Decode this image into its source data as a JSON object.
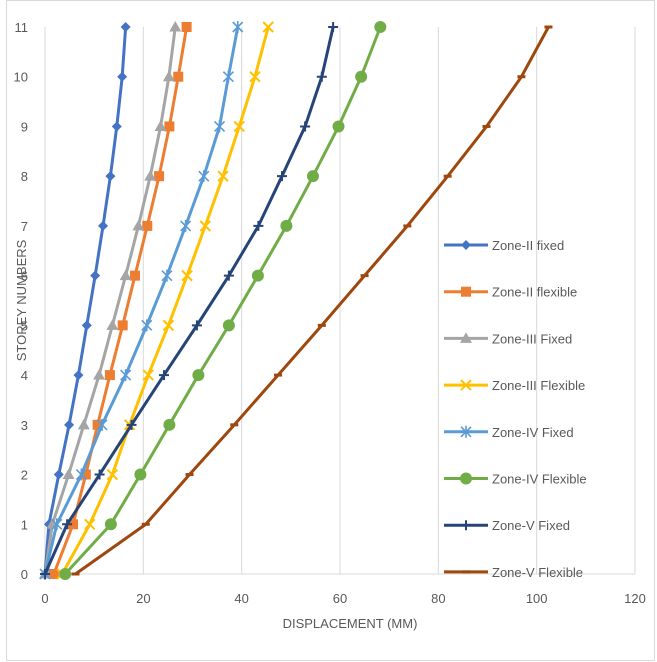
{
  "chart_data": {
    "type": "line",
    "xlabel": "DISPLACEMENT (MM)",
    "ylabel": "STOREY NUMBERS",
    "xlim": [
      0,
      120
    ],
    "ylim": [
      0,
      11
    ],
    "x_ticks": [
      0,
      20,
      40,
      60,
      80,
      100,
      120
    ],
    "y_ticks": [
      0,
      1,
      2,
      3,
      4,
      5,
      6,
      7,
      8,
      9,
      10,
      11
    ],
    "grid": "vertical",
    "legend_position": "right",
    "y": [
      0,
      1,
      2,
      3,
      4,
      5,
      6,
      7,
      8,
      9,
      10,
      11
    ],
    "series": [
      {
        "name": "Zone-II fixed",
        "color": "#4472c4",
        "marker": "diamond",
        "x": [
          0,
          0.8,
          2.8,
          4.9,
          6.8,
          8.5,
          10.2,
          11.8,
          13.3,
          14.6,
          15.7,
          16.4
        ]
      },
      {
        "name": "Zone-II flexible",
        "color": "#ed7d31",
        "marker": "square",
        "x": [
          1.8,
          5.7,
          8.3,
          10.7,
          13.2,
          15.8,
          18.3,
          20.8,
          23.2,
          25.3,
          27.1,
          28.8
        ]
      },
      {
        "name": "Zone-III Fixed",
        "color": "#a5a5a5",
        "marker": "triangle",
        "x": [
          0,
          1.5,
          4.8,
          7.9,
          11.0,
          13.7,
          16.4,
          19.0,
          21.4,
          23.5,
          25.2,
          26.5
        ]
      },
      {
        "name": "Zone-III Flexible",
        "color": "#ffc000",
        "marker": "x",
        "x": [
          3.5,
          9.1,
          13.7,
          17.2,
          21.0,
          25.1,
          28.9,
          32.6,
          36.2,
          39.5,
          42.7,
          45.4
        ]
      },
      {
        "name": "Zone-IV Fixed",
        "color": "#5b9bd5",
        "marker": "asterisk",
        "x": [
          0,
          2.4,
          7.4,
          11.6,
          16.4,
          20.7,
          24.8,
          28.6,
          32.3,
          35.5,
          37.3,
          39.2
        ]
      },
      {
        "name": "Zone-IV Flexible",
        "color": "#70ad47",
        "marker": "circle",
        "x": [
          4.1,
          13.4,
          19.4,
          25.3,
          31.2,
          37.4,
          43.3,
          49.1,
          54.5,
          59.7,
          64.3,
          68.2
        ]
      },
      {
        "name": "Zone-V Fixed",
        "color": "#264478",
        "marker": "plus",
        "x": [
          0,
          4.5,
          11.1,
          17.6,
          24.2,
          30.9,
          37.4,
          43.4,
          48.2,
          52.9,
          56.3,
          58.6
        ]
      },
      {
        "name": "Zone-V Flexible",
        "color": "#9e480e",
        "marker": "dash",
        "x": [
          6.2,
          20.5,
          29.4,
          38.5,
          47.4,
          56.3,
          65.0,
          73.7,
          81.9,
          89.8,
          96.9,
          102.4
        ]
      }
    ]
  }
}
